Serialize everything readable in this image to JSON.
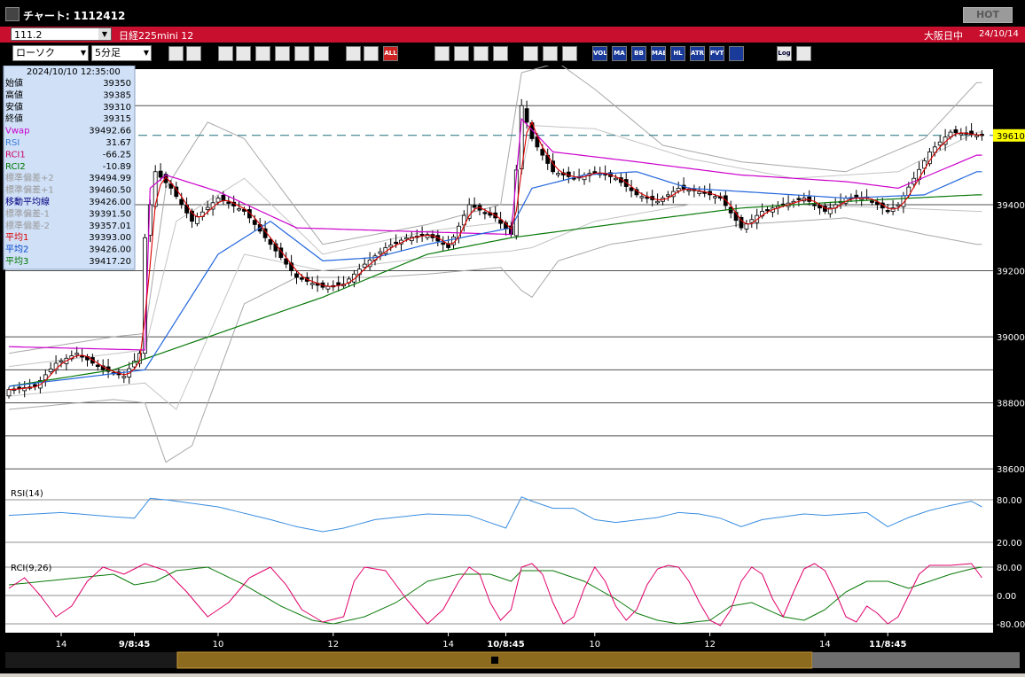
{
  "window": {
    "title": "チャート: 1112412",
    "hot_label": "HOT"
  },
  "symbol": {
    "code": "111.2",
    "name": "日経225mini 12",
    "market": "大阪日中",
    "date": "24/10/14"
  },
  "toolbar": {
    "chart_type": "ローソク",
    "interval": "5分足",
    "buttons": [
      "zoom",
      "crosshair",
      "draw",
      "cursor",
      "move",
      "zoom-in",
      "copy",
      "delete",
      "split",
      "swap",
      "ALL",
      "search",
      "hist",
      "buysell",
      "info",
      "tools",
      "wrench",
      "color",
      "VOL",
      "MA",
      "BB",
      "MAE",
      "HL",
      "ATR",
      "PVT",
      "box",
      "Log",
      "exit"
    ]
  },
  "info_panel": {
    "datetime": "2024/10/10  12:35:00",
    "rows": [
      {
        "label": "始値",
        "value": "39350",
        "color": "#000000"
      },
      {
        "label": "高値",
        "value": "39385",
        "color": "#000000"
      },
      {
        "label": "安値",
        "value": "39310",
        "color": "#000000"
      },
      {
        "label": "終値",
        "value": "39315",
        "color": "#000000"
      },
      {
        "label": "Vwap",
        "value": "39492.66",
        "color": "#cc00cc"
      },
      {
        "label": "RSI",
        "value": "31.67",
        "color": "#3a7ad8"
      },
      {
        "label": "RCI1",
        "value": "-66.25",
        "color": "#cc0066"
      },
      {
        "label": "RCI2",
        "value": "-10.89",
        "color": "#007700"
      },
      {
        "label": "標準偏差+2",
        "value": "39494.99",
        "color": "#9a9a9a"
      },
      {
        "label": "標準偏差+1",
        "value": "39460.50",
        "color": "#9a9a9a"
      },
      {
        "label": "移動平均線",
        "value": "39426.00",
        "color": "#000080"
      },
      {
        "label": "標準偏差-1",
        "value": "39391.50",
        "color": "#9a9a9a"
      },
      {
        "label": "標準偏差-2",
        "value": "39357.01",
        "color": "#9a9a9a"
      },
      {
        "label": "平均1",
        "value": "39393.00",
        "color": "#dd0000"
      },
      {
        "label": "平均2",
        "value": "39426.00",
        "color": "#0044cc"
      },
      {
        "label": "平均3",
        "value": "39417.20",
        "color": "#007700"
      }
    ]
  },
  "chart_data": {
    "type": "line",
    "title": "",
    "last_price_label": "39610",
    "main": {
      "ylim": [
        38560,
        39800
      ],
      "yticks": [
        39400,
        39200,
        39000,
        38800,
        38600
      ]
    },
    "rsi": {
      "label": "RSI(14)",
      "ylim": [
        0,
        100
      ],
      "yticks": [
        "80.00",
        "20.00"
      ],
      "yvals": [
        80,
        20
      ]
    },
    "rci": {
      "label": "RCI(9,26)",
      "ylim": [
        -100,
        100
      ],
      "yticks": [
        "80.00",
        "0.00",
        "-80.00"
      ],
      "yvals": [
        80,
        0,
        -80
      ]
    },
    "x_labels": [
      "14",
      "9/8:45",
      "10",
      "12",
      "14",
      "10/8:45",
      "10",
      "12",
      "14",
      "11/8:45"
    ],
    "x_label_bold": [
      false,
      true,
      false,
      false,
      false,
      true,
      false,
      false,
      false,
      true
    ],
    "x_label_idx": [
      10,
      24,
      40,
      62,
      84,
      95,
      112,
      134,
      156,
      168
    ],
    "anchors_close": [
      [
        0,
        38840
      ],
      [
        5,
        38850
      ],
      [
        9,
        38920
      ],
      [
        13,
        38950
      ],
      [
        18,
        38900
      ],
      [
        22,
        38880
      ],
      [
        25,
        38950
      ],
      [
        26,
        39300
      ],
      [
        28,
        39500
      ],
      [
        31,
        39450
      ],
      [
        35,
        39350
      ],
      [
        40,
        39420
      ],
      [
        45,
        39380
      ],
      [
        50,
        39280
      ],
      [
        55,
        39180
      ],
      [
        60,
        39150
      ],
      [
        64,
        39160
      ],
      [
        68,
        39220
      ],
      [
        72,
        39270
      ],
      [
        76,
        39300
      ],
      [
        80,
        39310
      ],
      [
        84,
        39270
      ],
      [
        88,
        39400
      ],
      [
        93,
        39360
      ],
      [
        96,
        39310
      ],
      [
        98,
        39700
      ],
      [
        100,
        39600
      ],
      [
        104,
        39500
      ],
      [
        108,
        39480
      ],
      [
        112,
        39500
      ],
      [
        116,
        39480
      ],
      [
        120,
        39430
      ],
      [
        124,
        39410
      ],
      [
        128,
        39450
      ],
      [
        132,
        39440
      ],
      [
        136,
        39420
      ],
      [
        140,
        39330
      ],
      [
        144,
        39380
      ],
      [
        148,
        39400
      ],
      [
        152,
        39420
      ],
      [
        156,
        39380
      ],
      [
        160,
        39420
      ],
      [
        164,
        39420
      ],
      [
        168,
        39380
      ],
      [
        170,
        39400
      ],
      [
        173,
        39480
      ],
      [
        176,
        39560
      ],
      [
        180,
        39620
      ],
      [
        185,
        39610
      ]
    ],
    "anchors_vwap": [
      [
        0,
        38970
      ],
      [
        26,
        38960
      ],
      [
        27,
        39450
      ],
      [
        30,
        39490
      ],
      [
        40,
        39440
      ],
      [
        55,
        39330
      ],
      [
        75,
        39320
      ],
      [
        96,
        39310
      ],
      [
        98,
        39660
      ],
      [
        104,
        39560
      ],
      [
        120,
        39530
      ],
      [
        140,
        39490
      ],
      [
        160,
        39470
      ],
      [
        170,
        39450
      ],
      [
        185,
        39550
      ]
    ],
    "anchors_ma2": [
      [
        0,
        38850
      ],
      [
        26,
        38900
      ],
      [
        30,
        39000
      ],
      [
        40,
        39250
      ],
      [
        50,
        39350
      ],
      [
        60,
        39230
      ],
      [
        70,
        39240
      ],
      [
        80,
        39280
      ],
      [
        96,
        39330
      ],
      [
        100,
        39450
      ],
      [
        110,
        39490
      ],
      [
        120,
        39500
      ],
      [
        130,
        39450
      ],
      [
        140,
        39440
      ],
      [
        160,
        39420
      ],
      [
        175,
        39430
      ],
      [
        185,
        39500
      ]
    ],
    "anchors_ma3": [
      [
        0,
        38850
      ],
      [
        20,
        38900
      ],
      [
        40,
        39010
      ],
      [
        60,
        39120
      ],
      [
        80,
        39250
      ],
      [
        96,
        39300
      ],
      [
        120,
        39350
      ],
      [
        140,
        39390
      ],
      [
        160,
        39410
      ],
      [
        185,
        39430
      ]
    ],
    "anchors_bbup": [
      [
        0,
        38950
      ],
      [
        20,
        39000
      ],
      [
        26,
        39010
      ],
      [
        30,
        39450
      ],
      [
        38,
        39650
      ],
      [
        45,
        39600
      ],
      [
        52,
        39450
      ],
      [
        60,
        39280
      ],
      [
        80,
        39340
      ],
      [
        94,
        39400
      ],
      [
        98,
        39800
      ],
      [
        105,
        39830
      ],
      [
        112,
        39750
      ],
      [
        125,
        39580
      ],
      [
        140,
        39530
      ],
      [
        160,
        39500
      ],
      [
        175,
        39600
      ],
      [
        185,
        39770
      ]
    ],
    "anchors_bblo": [
      [
        0,
        38780
      ],
      [
        20,
        38810
      ],
      [
        26,
        38800
      ],
      [
        30,
        38620
      ],
      [
        35,
        38670
      ],
      [
        45,
        39100
      ],
      [
        55,
        39180
      ],
      [
        60,
        39180
      ],
      [
        70,
        39180
      ],
      [
        80,
        39190
      ],
      [
        94,
        39210
      ],
      [
        98,
        39140
      ],
      [
        100,
        39120
      ],
      [
        105,
        39230
      ],
      [
        115,
        39280
      ],
      [
        140,
        39340
      ],
      [
        160,
        39360
      ],
      [
        175,
        39310
      ],
      [
        185,
        39280
      ]
    ],
    "anchors_bbup1": [
      [
        0,
        38910
      ],
      [
        26,
        38960
      ],
      [
        32,
        39350
      ],
      [
        45,
        39480
      ],
      [
        60,
        39250
      ],
      [
        80,
        39320
      ],
      [
        96,
        39350
      ],
      [
        100,
        39640
      ],
      [
        112,
        39630
      ],
      [
        130,
        39540
      ],
      [
        150,
        39480
      ],
      [
        170,
        39500
      ],
      [
        185,
        39620
      ]
    ],
    "anchors_bblo1": [
      [
        0,
        38820
      ],
      [
        26,
        38860
      ],
      [
        32,
        38780
      ],
      [
        45,
        39250
      ],
      [
        60,
        39200
      ],
      [
        80,
        39240
      ],
      [
        96,
        39260
      ],
      [
        100,
        39270
      ],
      [
        112,
        39350
      ],
      [
        130,
        39400
      ],
      [
        150,
        39400
      ],
      [
        170,
        39390
      ],
      [
        185,
        39380
      ]
    ],
    "anchors_rsi": [
      [
        0,
        58
      ],
      [
        10,
        62
      ],
      [
        20,
        56
      ],
      [
        24,
        54
      ],
      [
        27,
        82
      ],
      [
        30,
        80
      ],
      [
        40,
        70
      ],
      [
        50,
        52
      ],
      [
        55,
        42
      ],
      [
        60,
        35
      ],
      [
        64,
        40
      ],
      [
        70,
        52
      ],
      [
        80,
        60
      ],
      [
        88,
        58
      ],
      [
        95,
        40
      ],
      [
        98,
        84
      ],
      [
        100,
        78
      ],
      [
        104,
        68
      ],
      [
        108,
        68
      ],
      [
        112,
        52
      ],
      [
        116,
        48
      ],
      [
        124,
        55
      ],
      [
        128,
        62
      ],
      [
        132,
        60
      ],
      [
        136,
        54
      ],
      [
        140,
        42
      ],
      [
        144,
        52
      ],
      [
        152,
        60
      ],
      [
        156,
        58
      ],
      [
        160,
        60
      ],
      [
        164,
        62
      ],
      [
        168,
        42
      ],
      [
        172,
        55
      ],
      [
        176,
        65
      ],
      [
        180,
        72
      ],
      [
        184,
        78
      ],
      [
        186,
        70
      ]
    ],
    "anchors_rci1": [
      [
        0,
        20
      ],
      [
        3,
        50
      ],
      [
        6,
        0
      ],
      [
        9,
        -60
      ],
      [
        12,
        -30
      ],
      [
        15,
        40
      ],
      [
        18,
        80
      ],
      [
        22,
        60
      ],
      [
        26,
        90
      ],
      [
        30,
        70
      ],
      [
        34,
        10
      ],
      [
        38,
        -60
      ],
      [
        42,
        -20
      ],
      [
        46,
        50
      ],
      [
        50,
        80
      ],
      [
        53,
        30
      ],
      [
        56,
        -40
      ],
      [
        60,
        -75
      ],
      [
        64,
        -60
      ],
      [
        66,
        40
      ],
      [
        68,
        80
      ],
      [
        72,
        70
      ],
      [
        76,
        -10
      ],
      [
        80,
        -80
      ],
      [
        83,
        -40
      ],
      [
        86,
        40
      ],
      [
        88,
        80
      ],
      [
        90,
        60
      ],
      [
        92,
        -20
      ],
      [
        94,
        -70
      ],
      [
        96,
        -40
      ],
      [
        98,
        80
      ],
      [
        100,
        90
      ],
      [
        102,
        60
      ],
      [
        104,
        -20
      ],
      [
        106,
        -80
      ],
      [
        108,
        -60
      ],
      [
        110,
        20
      ],
      [
        112,
        80
      ],
      [
        114,
        40
      ],
      [
        116,
        -30
      ],
      [
        118,
        -70
      ],
      [
        120,
        -40
      ],
      [
        122,
        30
      ],
      [
        124,
        75
      ],
      [
        126,
        85
      ],
      [
        128,
        80
      ],
      [
        130,
        40
      ],
      [
        132,
        -20
      ],
      [
        134,
        -70
      ],
      [
        136,
        -85
      ],
      [
        138,
        -40
      ],
      [
        140,
        40
      ],
      [
        142,
        80
      ],
      [
        144,
        60
      ],
      [
        146,
        -10
      ],
      [
        148,
        -60
      ],
      [
        150,
        10
      ],
      [
        152,
        75
      ],
      [
        154,
        90
      ],
      [
        156,
        70
      ],
      [
        158,
        10
      ],
      [
        160,
        -60
      ],
      [
        162,
        -75
      ],
      [
        164,
        -30
      ],
      [
        166,
        -50
      ],
      [
        168,
        -80
      ],
      [
        170,
        -60
      ],
      [
        172,
        0
      ],
      [
        174,
        60
      ],
      [
        176,
        85
      ],
      [
        180,
        85
      ],
      [
        184,
        90
      ],
      [
        186,
        50
      ]
    ],
    "anchors_rci2": [
      [
        0,
        30
      ],
      [
        10,
        45
      ],
      [
        20,
        60
      ],
      [
        24,
        30
      ],
      [
        28,
        40
      ],
      [
        32,
        70
      ],
      [
        38,
        80
      ],
      [
        45,
        30
      ],
      [
        52,
        -30
      ],
      [
        58,
        -70
      ],
      [
        62,
        -80
      ],
      [
        68,
        -60
      ],
      [
        74,
        -20
      ],
      [
        80,
        40
      ],
      [
        86,
        60
      ],
      [
        92,
        60
      ],
      [
        96,
        40
      ],
      [
        98,
        70
      ],
      [
        104,
        70
      ],
      [
        110,
        40
      ],
      [
        116,
        -10
      ],
      [
        120,
        -50
      ],
      [
        124,
        -70
      ],
      [
        128,
        -80
      ],
      [
        134,
        -70
      ],
      [
        138,
        -30
      ],
      [
        142,
        -20
      ],
      [
        148,
        -60
      ],
      [
        152,
        -70
      ],
      [
        156,
        -40
      ],
      [
        160,
        10
      ],
      [
        164,
        40
      ],
      [
        168,
        40
      ],
      [
        172,
        20
      ],
      [
        176,
        40
      ],
      [
        180,
        60
      ],
      [
        184,
        75
      ],
      [
        186,
        80
      ]
    ]
  }
}
